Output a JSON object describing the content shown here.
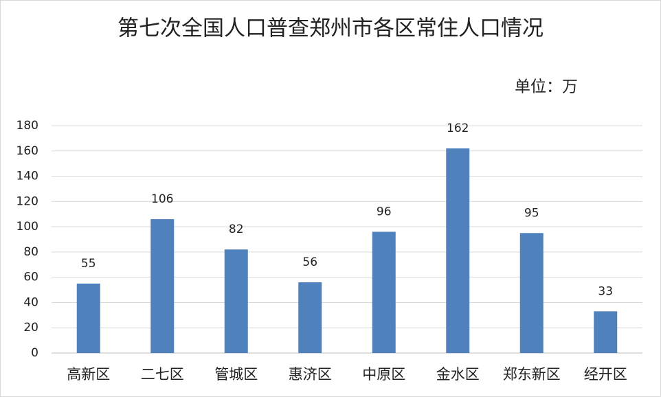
{
  "chart_data": {
    "type": "bar",
    "title": "第七次全国人口普查郑州市各区常住人口情况",
    "unit": "单位：万",
    "categories": [
      "高新区",
      "二七区",
      "管城区",
      "惠济区",
      "中原区",
      "金水区",
      "郑东新区",
      "经开区"
    ],
    "values": [
      55,
      106,
      82,
      56,
      96,
      162,
      95,
      33
    ],
    "color": "#4f81bd",
    "ylim": [
      0,
      180
    ],
    "yticks": [
      0,
      20,
      40,
      60,
      80,
      100,
      120,
      140,
      160,
      180
    ],
    "grid": true
  }
}
